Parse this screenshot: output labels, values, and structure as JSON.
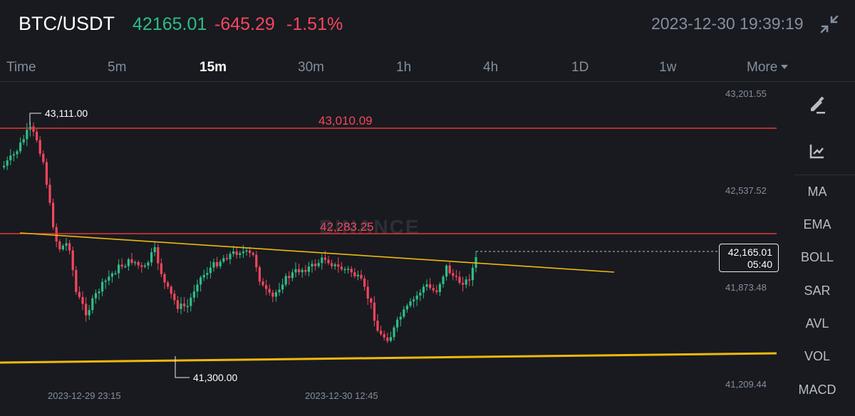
{
  "header": {
    "pair": "BTC/USDT",
    "last_price": "42165.01",
    "change": "-645.29",
    "change_pct": "-1.51%",
    "datetime": "2023-12-30 19:39:19",
    "collapse_icon": "collapse-arrows-icon"
  },
  "intervals": {
    "time": "Time",
    "m5": "5m",
    "m15": "15m",
    "m30": "30m",
    "h1": "1h",
    "h4": "4h",
    "d1": "1D",
    "w1": "1w",
    "more": "More",
    "active": "15m"
  },
  "chart": {
    "watermark": "BINANCE",
    "y_axis": [
      "43,201.55",
      "42,537.52",
      "41,873.48",
      "41,209.44"
    ],
    "x_axis": [
      "2023-12-29 23:15",
      "2023-12-30 12:45"
    ],
    "high_label": "43,111.00",
    "low_label": "41,300.00",
    "hline_upper": "43,010.09",
    "hline_lower": "42,283.25",
    "last_price": "42,165.01",
    "countdown": "05:40",
    "colors": {
      "up": "#2ebd85",
      "down": "#f6465d",
      "trendline": "#f0b90b",
      "hline": "#e53935"
    }
  },
  "toolbar": {
    "draw_icon": "pencil-draw-icon",
    "indicator_icon": "chart-indicator-icon",
    "items": [
      "MA",
      "EMA",
      "BOLL",
      "SAR",
      "AVL",
      "VOL",
      "MACD"
    ]
  }
}
